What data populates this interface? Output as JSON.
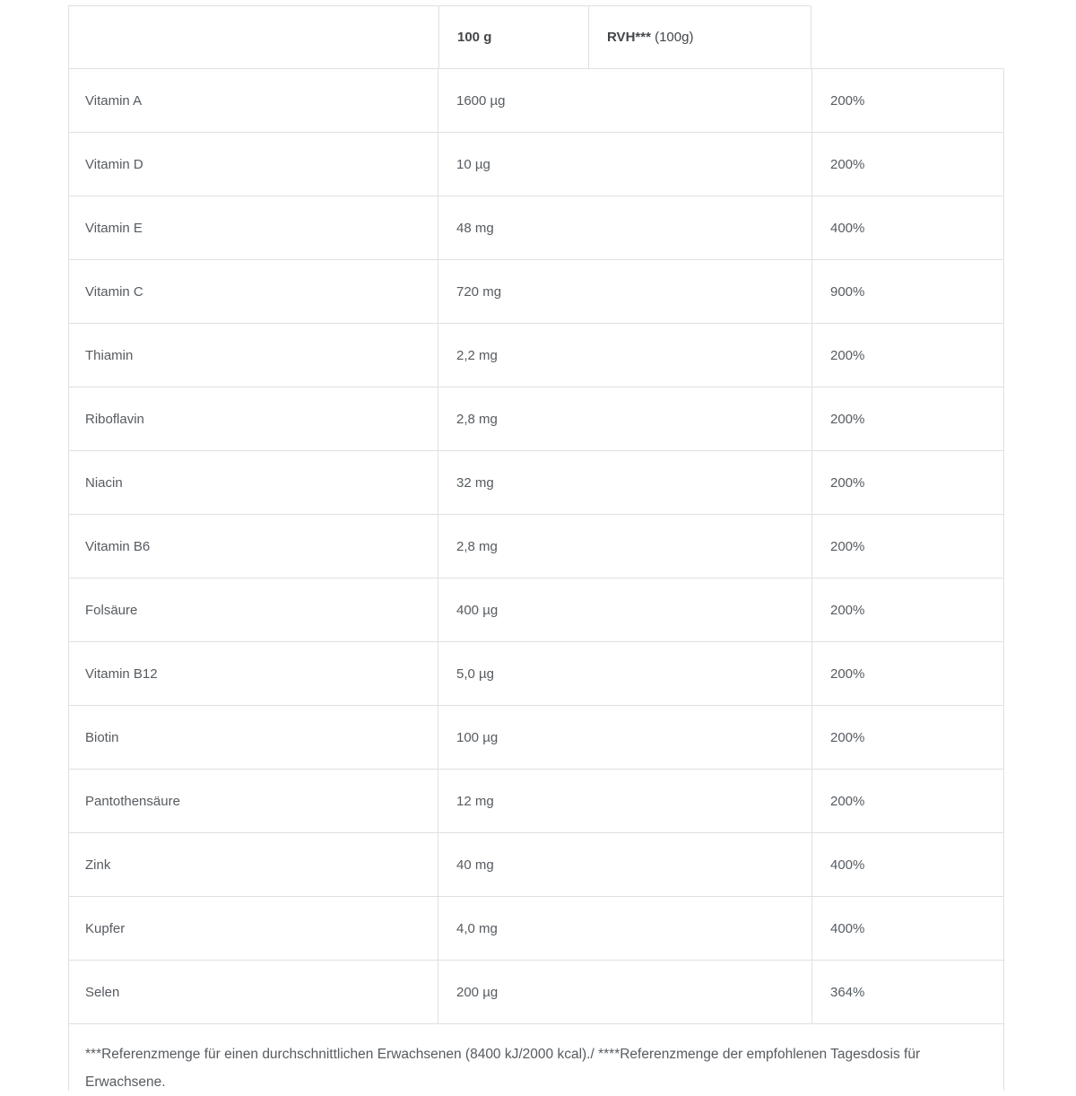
{
  "colors": {
    "background": "#ffffff",
    "border": "#e0e0e0",
    "body_text": "#565b60",
    "header_text": "#43474b"
  },
  "table": {
    "header": {
      "col1": "",
      "amount_label": "100 g",
      "rvh_label_bold": "RVH***",
      "rvh_label_normal": " (100g)"
    },
    "rows": [
      {
        "name": "Vitamin A",
        "amount": "1600 µg",
        "rvh": "200%"
      },
      {
        "name": "Vitamin D",
        "amount": "10 µg",
        "rvh": "200%"
      },
      {
        "name": "Vitamin E",
        "amount": "48 mg",
        "rvh": "400%"
      },
      {
        "name": "Vitamin C",
        "amount": "720 mg",
        "rvh": "900%"
      },
      {
        "name": "Thiamin",
        "amount": "2,2 mg",
        "rvh": "200%"
      },
      {
        "name": "Riboflavin",
        "amount": "2,8 mg",
        "rvh": "200%"
      },
      {
        "name": "Niacin",
        "amount": "32 mg",
        "rvh": "200%"
      },
      {
        "name": "Vitamin B6",
        "amount": "2,8 mg",
        "rvh": "200%"
      },
      {
        "name": "Folsäure",
        "amount": "400 µg",
        "rvh": "200%"
      },
      {
        "name": "Vitamin B12",
        "amount": "5,0 µg",
        "rvh": "200%"
      },
      {
        "name": "Biotin",
        "amount": "100 µg",
        "rvh": "200%"
      },
      {
        "name": "Pantothensäure",
        "amount": "12 mg",
        "rvh": "200%"
      },
      {
        "name": "Zink",
        "amount": "40 mg",
        "rvh": "400%"
      },
      {
        "name": "Kupfer",
        "amount": "4,0 mg",
        "rvh": "400%"
      },
      {
        "name": "Selen",
        "amount": "200 µg",
        "rvh": "364%"
      }
    ],
    "footnote": "***Referenzmenge für einen durchschnittlichen Erwachsenen (8400 kJ/2000 kcal)./ ****Referenzmenge der empfohlenen Tagesdosis für Erwachsene."
  }
}
